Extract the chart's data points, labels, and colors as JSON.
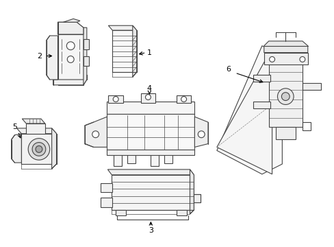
{
  "background_color": "#ffffff",
  "line_color": "#444444",
  "label_color": "#000000",
  "fig_width": 4.89,
  "fig_height": 3.6,
  "dpi": 100
}
